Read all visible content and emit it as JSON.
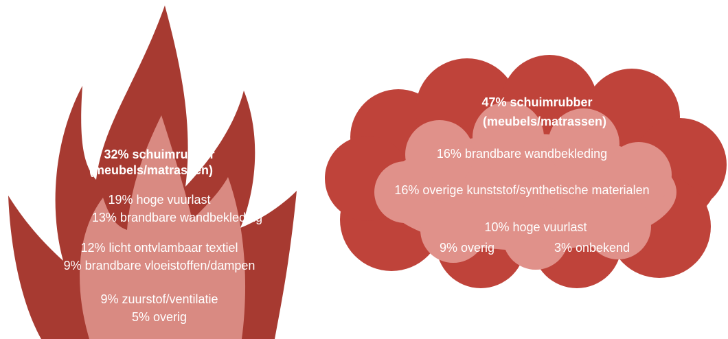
{
  "flame": {
    "lines": [
      "32% schuimrubber",
      "(meubels/matrassen)",
      "19% hoge vuurlast",
      "13% brandbare wandbekleding",
      "12% licht ontvlambaar textiel",
      "9% brandbare vloeistoffen/dampen",
      "9% zuurstof/ventilatie",
      "5% overig"
    ]
  },
  "cloud": {
    "lines": [
      "47% schuimrubber",
      "(meubels/matrassen)",
      "16% brandbare wandbekleding",
      "16% overige kunststof/synthetische materialen",
      "10% hoge vuurlast",
      "9% overig",
      "3% onbekend"
    ]
  }
}
